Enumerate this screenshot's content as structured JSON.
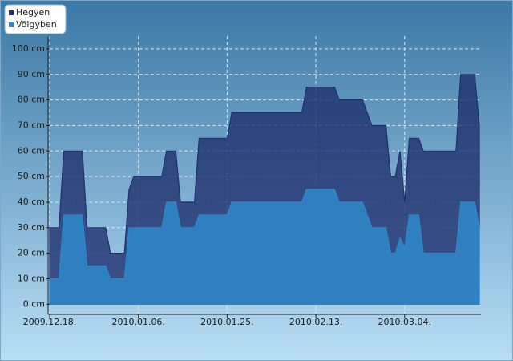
{
  "chart_data": {
    "type": "area",
    "x": [
      "2009-12-18",
      "2009-12-20",
      "2009-12-21",
      "2009-12-25",
      "2009-12-26",
      "2009-12-30",
      "2009-12-31",
      "2010-01-03",
      "2010-01-04",
      "2010-01-05",
      "2010-01-11",
      "2010-01-12",
      "2010-01-14",
      "2010-01-15",
      "2010-01-18",
      "2010-01-19",
      "2010-01-25",
      "2010-01-26",
      "2010-02-10",
      "2010-02-11",
      "2010-02-17",
      "2010-02-18",
      "2010-02-23",
      "2010-02-25",
      "2010-02-28",
      "2010-03-01",
      "2010-03-02",
      "2010-03-03",
      "2010-03-04",
      "2010-03-05",
      "2010-03-07",
      "2010-03-08",
      "2010-03-15",
      "2010-03-16",
      "2010-03-19",
      "2010-03-20"
    ],
    "series": [
      {
        "name": "Hegyen",
        "color": "#1f2f6e",
        "values": [
          30,
          30,
          60,
          60,
          30,
          30,
          20,
          20,
          45,
          50,
          50,
          60,
          60,
          40,
          40,
          65,
          65,
          75,
          75,
          85,
          85,
          80,
          80,
          70,
          70,
          50,
          50,
          60,
          40,
          65,
          65,
          60,
          60,
          90,
          90,
          70
        ]
      },
      {
        "name": "Völgyben",
        "color": "#2f86c8",
        "values": [
          10,
          10,
          35,
          35,
          15,
          15,
          10,
          10,
          30,
          30,
          30,
          40,
          40,
          30,
          30,
          35,
          35,
          40,
          40,
          45,
          45,
          40,
          40,
          30,
          30,
          20,
          20,
          26,
          22,
          35,
          35,
          20,
          20,
          40,
          40,
          30
        ]
      }
    ],
    "xlim": [
      "2009-12-18",
      "2010-03-20"
    ],
    "xticks": [
      {
        "value": "2009-12-18",
        "label": "2009.12.18."
      },
      {
        "value": "2010-01-06",
        "label": "2010.01.06."
      },
      {
        "value": "2010-01-25",
        "label": "2010.01.25."
      },
      {
        "value": "2010-02-13",
        "label": "2010.02.13."
      },
      {
        "value": "2010-03-04",
        "label": "2010.03.04."
      }
    ],
    "ylim": [
      -4,
      105
    ],
    "yticks": [
      {
        "value": 0,
        "label": "0 cm"
      },
      {
        "value": 10,
        "label": "10 cm"
      },
      {
        "value": 20,
        "label": "20 cm"
      },
      {
        "value": 30,
        "label": "30 cm"
      },
      {
        "value": 40,
        "label": "40 cm"
      },
      {
        "value": 50,
        "label": "50 cm"
      },
      {
        "value": 60,
        "label": "60 cm"
      },
      {
        "value": 70,
        "label": "70 cm"
      },
      {
        "value": 80,
        "label": "80 cm"
      },
      {
        "value": 90,
        "label": "90 cm"
      },
      {
        "value": 100,
        "label": "100 cm"
      }
    ],
    "grid": true,
    "legend": "top-left"
  }
}
